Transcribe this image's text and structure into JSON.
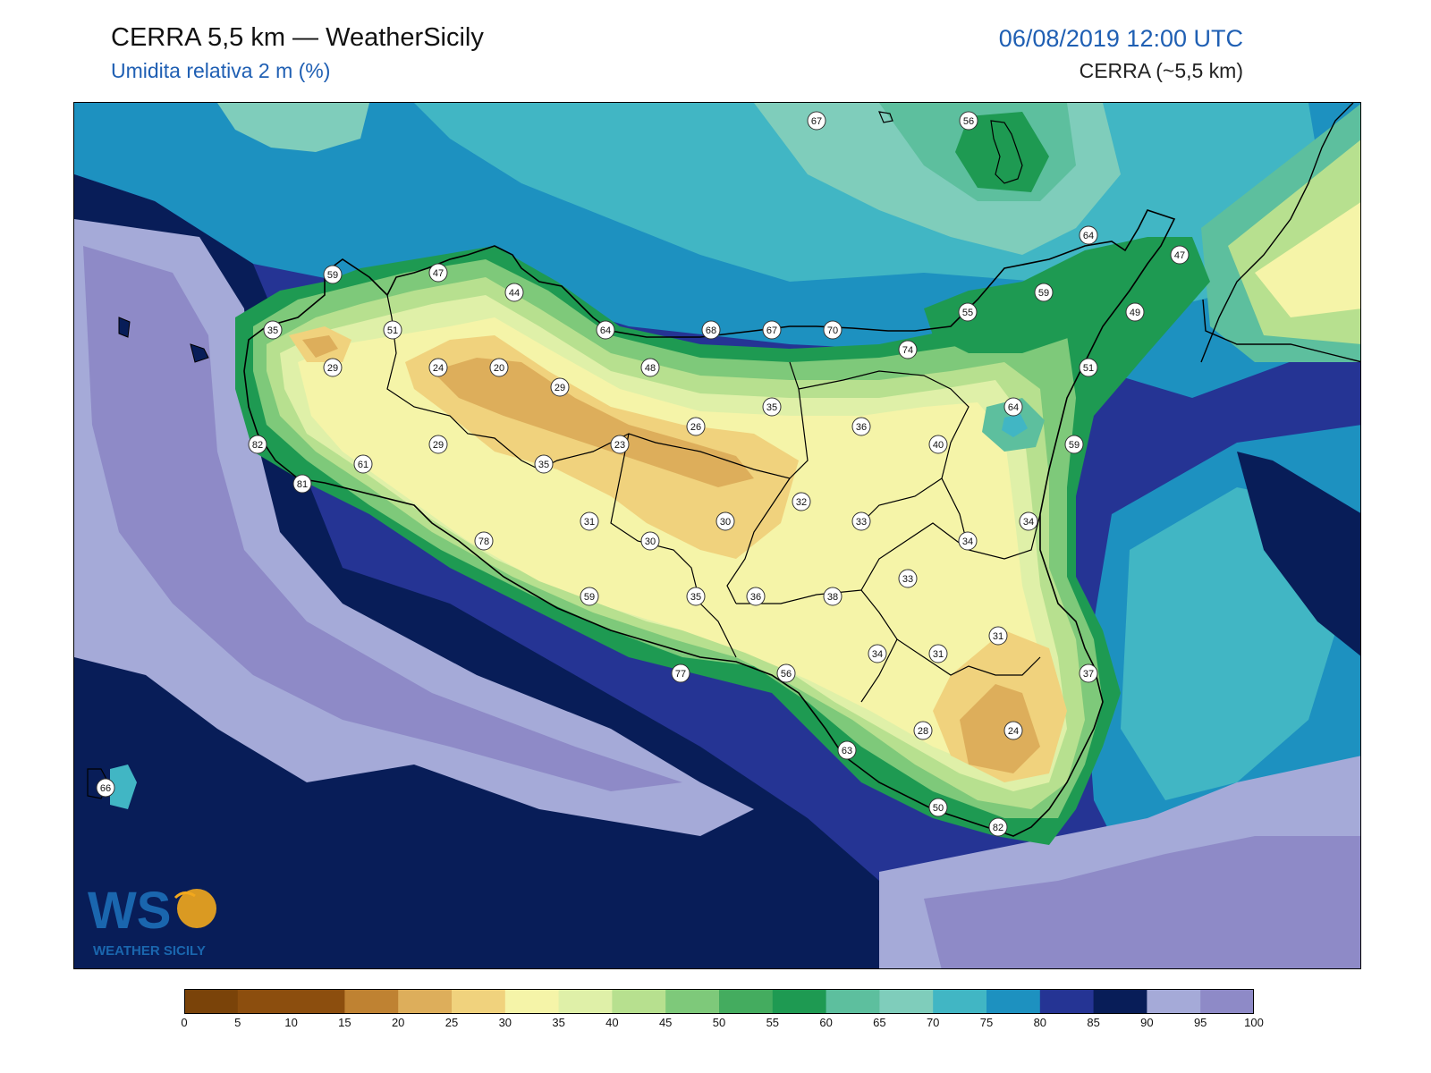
{
  "header": {
    "title": "CERRA 5,5 km — WeatherSicily",
    "subtitle": "Umidita relativa 2 m (%)",
    "datetime": "06/08/2019 12:00 UTC",
    "model": "CERRA (~5,5 km)"
  },
  "logo": {
    "text_main": "WS",
    "text_sub": "WEATHER SICILY"
  },
  "colorbar": {
    "ticks": [
      "0",
      "5",
      "10",
      "15",
      "20",
      "25",
      "30",
      "35",
      "40",
      "45",
      "50",
      "55",
      "60",
      "65",
      "70",
      "75",
      "80",
      "85",
      "90",
      "95",
      "100"
    ],
    "colors": [
      "#7a4309",
      "#8c4e0e",
      "#8c4e0e",
      "#bf8232",
      "#ddae5b",
      "#f0d27d",
      "#f5f4a8",
      "#dff0a8",
      "#b7e08f",
      "#7ec97a",
      "#44ac5f",
      "#1e9a52",
      "#5dbf9e",
      "#7fcdbb",
      "#41b6c4",
      "#1d91c0",
      "#253494",
      "#081d58",
      "#a5aad8",
      "#8e8ac7"
    ]
  },
  "stations": [
    {
      "value": "67"
    },
    {
      "value": "56"
    },
    {
      "value": "64"
    },
    {
      "value": "47"
    },
    {
      "value": "59"
    },
    {
      "value": "47"
    },
    {
      "value": "44"
    },
    {
      "value": "59"
    },
    {
      "value": "49"
    },
    {
      "value": "55"
    },
    {
      "value": "35"
    },
    {
      "value": "51"
    },
    {
      "value": "64"
    },
    {
      "value": "68"
    },
    {
      "value": "67"
    },
    {
      "value": "70"
    },
    {
      "value": "74"
    },
    {
      "value": "29"
    },
    {
      "value": "24"
    },
    {
      "value": "20"
    },
    {
      "value": "48"
    },
    {
      "value": "29"
    },
    {
      "value": "51"
    },
    {
      "value": "64"
    },
    {
      "value": "35"
    },
    {
      "value": "36"
    },
    {
      "value": "26"
    },
    {
      "value": "82"
    },
    {
      "value": "29"
    },
    {
      "value": "23"
    },
    {
      "value": "40"
    },
    {
      "value": "59"
    },
    {
      "value": "61"
    },
    {
      "value": "35"
    },
    {
      "value": "81"
    },
    {
      "value": "32"
    },
    {
      "value": "31"
    },
    {
      "value": "30"
    },
    {
      "value": "33"
    },
    {
      "value": "34"
    },
    {
      "value": "78"
    },
    {
      "value": "30"
    },
    {
      "value": "34"
    },
    {
      "value": "33"
    },
    {
      "value": "59"
    },
    {
      "value": "35"
    },
    {
      "value": "36"
    },
    {
      "value": "38"
    },
    {
      "value": "31"
    },
    {
      "value": "34"
    },
    {
      "value": "31"
    },
    {
      "value": "37"
    },
    {
      "value": "77"
    },
    {
      "value": "56"
    },
    {
      "value": "28"
    },
    {
      "value": "24"
    },
    {
      "value": "63"
    },
    {
      "value": "66"
    },
    {
      "value": "50"
    },
    {
      "value": "82"
    }
  ]
}
